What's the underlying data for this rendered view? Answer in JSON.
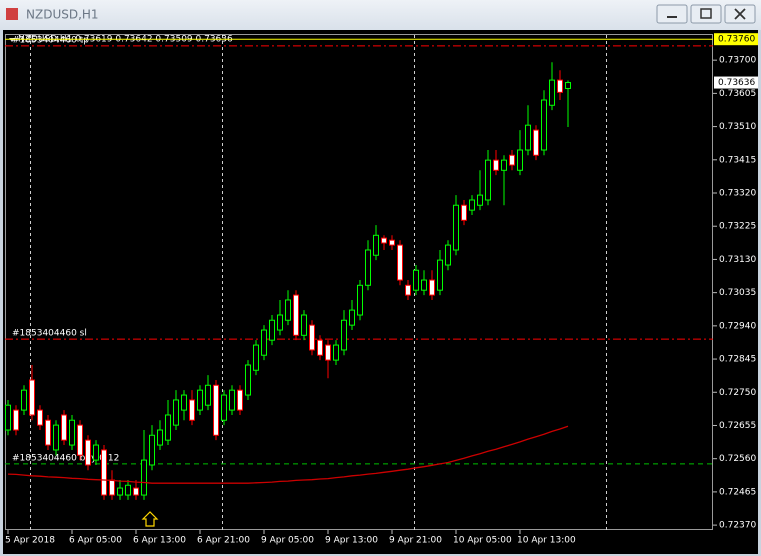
{
  "window": {
    "title": "NZDUSD,H1"
  },
  "chart_data": {
    "type": "candlestick",
    "info": "NZDUSD,H1  0.73619 0.73642 0.73509 0.73636",
    "up_color": "#00ff00",
    "down_color": "#ff0000",
    "open": [
      0.72642,
      0.72699,
      0.72699,
      0.72785,
      0.72699,
      0.7267,
      0.72585,
      0.72685,
      0.72599,
      0.72656,
      0.72613,
      0.72556,
      0.72585,
      0.72499,
      0.72456,
      0.72456,
      0.72476,
      0.72456,
      0.72542,
      0.72599,
      0.72613,
      0.72656,
      0.72699,
      0.72728,
      0.72699,
      0.72713,
      0.7277,
      0.7267,
      0.72699,
      0.72756,
      0.72742,
      0.72813,
      0.72856,
      0.72899,
      0.72928,
      0.72956,
      0.73028,
      0.72913,
      0.72942,
      0.72899,
      0.72885,
      0.72842,
      0.72871,
      0.72942,
      0.72971,
      0.73056,
      0.73142,
      0.73191,
      0.73185,
      0.73171,
      0.73056,
      0.73042,
      0.73042,
      0.73071,
      0.73042,
      0.73114,
      0.73157,
      0.73285,
      0.73271,
      0.73285,
      0.733,
      0.73414,
      0.73385,
      0.73428,
      0.73385,
      0.73443,
      0.735,
      0.73443,
      0.73571,
      0.73643,
      0.73619
    ],
    "high": [
      0.72728,
      0.72713,
      0.7277,
      0.72828,
      0.72713,
      0.72685,
      0.7267,
      0.72699,
      0.72685,
      0.7267,
      0.72627,
      0.72613,
      0.72599,
      0.72527,
      0.72499,
      0.72499,
      0.72499,
      0.72642,
      0.72656,
      0.7267,
      0.72728,
      0.72756,
      0.72756,
      0.72756,
      0.7277,
      0.72799,
      0.72785,
      0.72756,
      0.7277,
      0.7277,
      0.72842,
      0.72899,
      0.72942,
      0.72971,
      0.73014,
      0.73042,
      0.73042,
      0.72985,
      0.72956,
      0.72913,
      0.72899,
      0.72899,
      0.72985,
      0.73014,
      0.73071,
      0.73185,
      0.73228,
      0.73199,
      0.73199,
      0.73185,
      0.73071,
      0.73114,
      0.73099,
      0.73099,
      0.73157,
      0.73185,
      0.73314,
      0.733,
      0.73314,
      0.73385,
      0.73443,
      0.73443,
      0.73428,
      0.73443,
      0.735,
      0.73571,
      0.73514,
      0.73614,
      0.73694,
      0.73671,
      0.73642
    ],
    "low": [
      0.72627,
      0.72627,
      0.72685,
      0.7267,
      0.72642,
      0.72585,
      0.7257,
      0.72599,
      0.72585,
      0.72556,
      0.72527,
      0.72542,
      0.72442,
      0.72442,
      0.72442,
      0.72442,
      0.72442,
      0.72442,
      0.72527,
      0.72585,
      0.72599,
      0.72642,
      0.7267,
      0.72656,
      0.72685,
      0.72699,
      0.72613,
      0.72656,
      0.72685,
      0.72685,
      0.72728,
      0.72799,
      0.72842,
      0.72885,
      0.72913,
      0.72942,
      0.72899,
      0.72899,
      0.72856,
      0.72842,
      0.7279,
      0.72828,
      0.72856,
      0.72928,
      0.72956,
      0.73042,
      0.73128,
      0.73157,
      0.73157,
      0.73056,
      0.73014,
      0.73028,
      0.73028,
      0.73014,
      0.73028,
      0.73099,
      0.73142,
      0.73228,
      0.73257,
      0.73271,
      0.73285,
      0.73371,
      0.73285,
      0.73385,
      0.73371,
      0.73428,
      0.73414,
      0.73428,
      0.73557,
      0.73586,
      0.73509
    ],
    "close": [
      0.72713,
      0.72642,
      0.72756,
      0.72685,
      0.72656,
      0.72599,
      0.72656,
      0.72613,
      0.7267,
      0.7257,
      0.72542,
      0.72599,
      0.72456,
      0.72456,
      0.72476,
      0.72484,
      0.72456,
      0.72556,
      0.72627,
      0.72642,
      0.72685,
      0.72728,
      0.72742,
      0.7267,
      0.72756,
      0.7277,
      0.72627,
      0.72742,
      0.72756,
      0.72699,
      0.72828,
      0.72885,
      0.72928,
      0.72956,
      0.72971,
      0.73014,
      0.72913,
      0.72971,
      0.72871,
      0.72856,
      0.72842,
      0.72885,
      0.72956,
      0.72985,
      0.73056,
      0.73157,
      0.73199,
      0.73177,
      0.73171,
      0.73071,
      0.73028,
      0.73099,
      0.73071,
      0.73028,
      0.73128,
      0.73171,
      0.73285,
      0.73242,
      0.733,
      0.73314,
      0.73414,
      0.73385,
      0.73414,
      0.734,
      0.73443,
      0.73514,
      0.73428,
      0.73586,
      0.73643,
      0.73608,
      0.73636
    ],
    "ma": {
      "color": "#cc0000",
      "values": [
        0.72516,
        0.72515,
        0.72513,
        0.72511,
        0.7251,
        0.72508,
        0.72507,
        0.72506,
        0.72504,
        0.72503,
        0.72501,
        0.725,
        0.72499,
        0.72498,
        0.72496,
        0.72495,
        0.72493,
        0.72492,
        0.7249,
        0.7249,
        0.7249,
        0.7249,
        0.7249,
        0.7249,
        0.7249,
        0.7249,
        0.7249,
        0.7249,
        0.7249,
        0.7249,
        0.7249,
        0.72491,
        0.72492,
        0.72493,
        0.72495,
        0.72496,
        0.72498,
        0.72499,
        0.725,
        0.72502,
        0.72503,
        0.72506,
        0.72508,
        0.72511,
        0.72513,
        0.72516,
        0.72518,
        0.72521,
        0.72524,
        0.72527,
        0.7253,
        0.72534,
        0.72537,
        0.72541,
        0.72545,
        0.72549,
        0.72555,
        0.72561,
        0.72568,
        0.72574,
        0.72581,
        0.72587,
        0.72594,
        0.72601,
        0.72608,
        0.72616,
        0.72623,
        0.7263,
        0.72638,
        0.72645,
        0.72653
      ]
    },
    "xlim": [
      -0.375,
      88.125
    ],
    "xticks": [
      {
        "value": 0,
        "label": "5 Apr 2018"
      },
      {
        "value": 8,
        "label": "6 Apr 05:00"
      },
      {
        "value": 16,
        "label": "6 Apr 13:00"
      },
      {
        "value": 24,
        "label": "6 Apr 21:00"
      },
      {
        "value": 32,
        "label": "9 Apr 05:00"
      },
      {
        "value": 40,
        "label": "9 Apr 13:00"
      },
      {
        "value": 48,
        "label": "9 Apr 21:00"
      },
      {
        "value": 56,
        "label": "10 Apr 05:00"
      },
      {
        "value": 64,
        "label": "10 Apr 13:00"
      }
    ],
    "ylim": [
      0.72356,
      0.73772
    ],
    "yticks": [
      {
        "value": 0.737,
        "label": "0.73700"
      },
      {
        "value": 0.73605,
        "label": "0.73605"
      },
      {
        "value": 0.7351,
        "label": "0.73510"
      },
      {
        "value": 0.73415,
        "label": "0.73415"
      },
      {
        "value": 0.7332,
        "label": "0.73320"
      },
      {
        "value": 0.73225,
        "label": "0.73225"
      },
      {
        "value": 0.7313,
        "label": "0.73130"
      },
      {
        "value": 0.73035,
        "label": "0.73035"
      },
      {
        "value": 0.7294,
        "label": "0.72940"
      },
      {
        "value": 0.72845,
        "label": "0.72845"
      },
      {
        "value": 0.7275,
        "label": "0.72750"
      },
      {
        "value": 0.72655,
        "label": "0.72655"
      },
      {
        "value": 0.7256,
        "label": "0.72560"
      },
      {
        "value": 0.72465,
        "label": "0.72465"
      },
      {
        "value": 0.7237,
        "label": "0.72370"
      }
    ],
    "levels": [
      {
        "label": "#1853404460 tp",
        "value": 0.73741,
        "color": "#ff0000",
        "dash": "8 3 2 3"
      },
      {
        "label": "#1853404460 sl",
        "value": 0.72902,
        "color": "#ff0000",
        "dash": "8 3 2 3"
      },
      {
        "label": "#1853404460 buy 0.12",
        "value": 0.72545,
        "color": "#00c000",
        "dash": "5 4"
      }
    ],
    "price_line": {
      "value": 0.7376,
      "label": "0.73760",
      "color": "#ffff00"
    },
    "current_price": {
      "value": 0.73636,
      "label": "0.73636"
    }
  }
}
